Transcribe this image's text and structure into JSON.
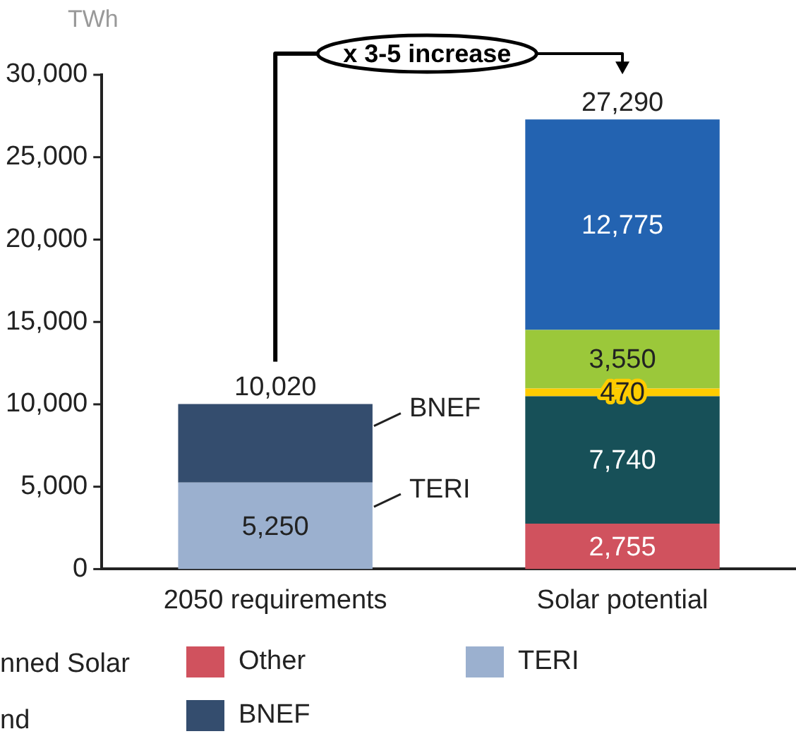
{
  "chart_data": {
    "type": "bar",
    "stacked": true,
    "ylabel": "TWh",
    "categories": [
      "2050 requirements",
      "Solar potential"
    ],
    "series": [
      {
        "name": "TERI",
        "color": "#9bb0cf",
        "values": [
          5250,
          null
        ],
        "value_labels": [
          "5,250",
          null
        ]
      },
      {
        "name": "BNEF",
        "color": "#344d6e",
        "values": [
          4770,
          null
        ]
      },
      {
        "name": "Other",
        "color": "#d0525e",
        "values": [
          null,
          2755
        ],
        "value_labels": [
          null,
          "2,755"
        ]
      },
      {
        "color": "#175058",
        "values": [
          null,
          7740
        ],
        "value_labels": [
          null,
          "7,740"
        ]
      },
      {
        "color": "#ffcc00",
        "values": [
          null,
          470
        ],
        "value_labels": [
          null,
          "470"
        ]
      },
      {
        "color": "#9bc83a",
        "values": [
          null,
          3550
        ],
        "value_labels": [
          null,
          "3,550"
        ]
      },
      {
        "color": "#2363b1",
        "values": [
          null,
          12775
        ],
        "value_labels": [
          null,
          "12,775"
        ]
      }
    ],
    "totals": [
      "10,020",
      "27,290"
    ],
    "ylim": [
      0,
      30000
    ],
    "yticks": [
      0,
      {
        "value": 5000,
        "label": "5,000"
      },
      {
        "value": 10000,
        "label": "10,000"
      },
      {
        "value": 15000,
        "label": "15,000"
      },
      {
        "value": 20000,
        "label": "20,000"
      },
      {
        "value": 25000,
        "label": "25,000"
      },
      {
        "value": 30000,
        "label": "30,000"
      }
    ],
    "legend": "bottom",
    "annotations": [
      "x 3-5 increase",
      "BNEF",
      "TERI",
      "nned Solar",
      "nd"
    ]
  }
}
